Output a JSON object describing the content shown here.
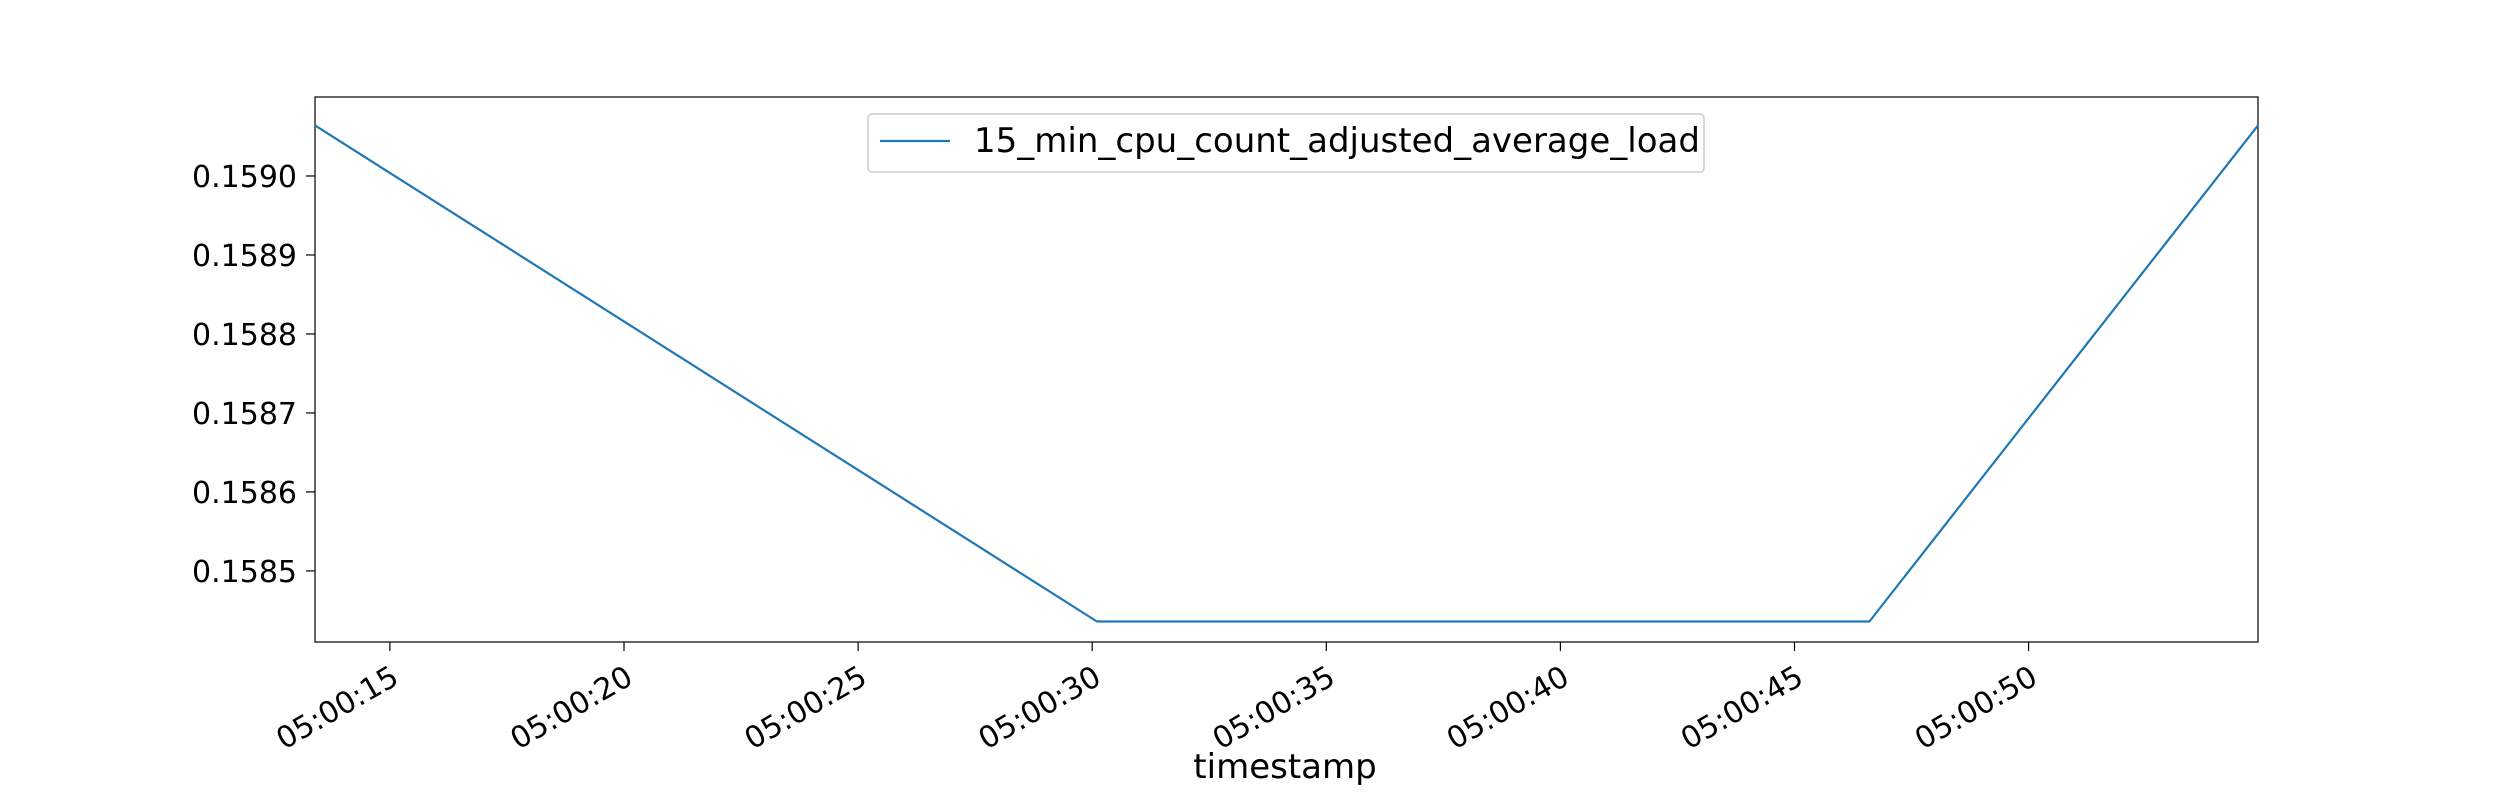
{
  "chart_data": {
    "type": "line",
    "title": "",
    "xlabel": "timestamp",
    "ylabel": "",
    "x_ticks": [
      "05:00:15",
      "05:00:20",
      "05:00:25",
      "05:00:30",
      "05:00:35",
      "05:00:40",
      "05:00:45",
      "05:00:50"
    ],
    "x_tick_seconds": [
      15,
      20,
      25,
      30,
      35,
      40,
      45,
      50
    ],
    "xlim": [
      "05:00:13.4",
      "05:00:54.9"
    ],
    "xlim_seconds": [
      13.4,
      54.9
    ],
    "y_ticks": [
      "0.1585",
      "0.1586",
      "0.1587",
      "0.1588",
      "0.1589",
      "0.1590"
    ],
    "y_tick_values": [
      0.1585,
      0.1586,
      0.1587,
      0.1588,
      0.1589,
      0.159
    ],
    "ylim": [
      0.15841,
      0.1591
    ],
    "grid": false,
    "legend_position": "top-center",
    "series": [
      {
        "name": "15_min_cpu_count_adjusted_average_load",
        "color": "#1f77b4",
        "x": [
          "05:00:13.4",
          "05:00:30.1",
          "05:00:46.6",
          "05:00:54.9"
        ],
        "x_seconds": [
          13.4,
          30.1,
          46.6,
          54.9
        ],
        "y": [
          0.159064,
          0.158436,
          0.158436,
          0.159064
        ]
      }
    ]
  }
}
